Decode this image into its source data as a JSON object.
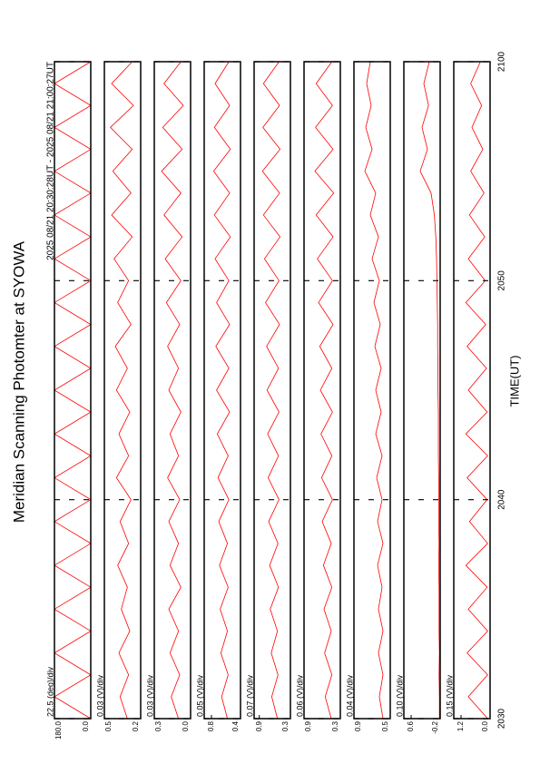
{
  "chart_data": {
    "type": "line",
    "title": "Meridian Scanning Photomter at SYOWA",
    "subtitle": "2025 08/21 20:30:28UT - 2025 08/21 21:00:27UT",
    "xlabel": "TIME(UT)",
    "xlim": [
      0,
      30
    ],
    "xticks": [
      {
        "value": 0,
        "label": "2030"
      },
      {
        "value": 10,
        "label": "2040"
      },
      {
        "value": 20,
        "label": "2050"
      },
      {
        "value": 30,
        "label": "2100"
      }
    ],
    "x": [
      0,
      1,
      2,
      3,
      4,
      5,
      6,
      7,
      8,
      9,
      10,
      11,
      12,
      13,
      14,
      15,
      16,
      17,
      18,
      19,
      20,
      21,
      22,
      23,
      24,
      25,
      26,
      27,
      28,
      29,
      30
    ],
    "panels": [
      {
        "scale_label": "22.5 (deg)/div",
        "color": "#ff0000",
        "ylim": [
          0,
          180
        ],
        "yticks": [
          {
            "value": 180,
            "label": "180.0"
          },
          {
            "value": 0,
            "label": "0.0"
          }
        ],
        "values": [
          0,
          180,
          0,
          180,
          0,
          180,
          0,
          180,
          0,
          180,
          0,
          180,
          0,
          180,
          0,
          180,
          0,
          180,
          0,
          180,
          0,
          180,
          0,
          180,
          0,
          180,
          0,
          180,
          0,
          180,
          0
        ]
      },
      {
        "scale_label": "0.03 (V)/div",
        "color": "#ff0000",
        "ylim": [
          0.2,
          0.5
        ],
        "yticks": [
          0.5,
          0.2
        ],
        "values": [
          0.31,
          0.37,
          0.3,
          0.38,
          0.29,
          0.36,
          0.31,
          0.39,
          0.3,
          0.37,
          0.28,
          0.4,
          0.3,
          0.38,
          0.29,
          0.4,
          0.31,
          0.41,
          0.28,
          0.39,
          0.3,
          0.42,
          0.27,
          0.44,
          0.28,
          0.43,
          0.27,
          0.45,
          0.26,
          0.44,
          0.27
        ]
      },
      {
        "scale_label": "0.03 (V)/div",
        "color": "#ff0000",
        "ylim": [
          0,
          0.3
        ],
        "yticks": [
          0.3,
          {
            "value": 0,
            "label": "0.0"
          }
        ],
        "values": [
          0.1,
          0.16,
          0.09,
          0.17,
          0.1,
          0.18,
          0.08,
          0.17,
          0.1,
          0.18,
          0.09,
          0.19,
          0.1,
          0.17,
          0.08,
          0.18,
          0.1,
          0.19,
          0.09,
          0.2,
          0.08,
          0.21,
          0.07,
          0.22,
          0.08,
          0.24,
          0.07,
          0.23,
          0.06,
          0.22,
          0.08
        ]
      },
      {
        "scale_label": "0.05 (V)/div",
        "color": "#ff0000",
        "ylim": [
          0.4,
          0.9
        ],
        "yticks": [
          0.8,
          0.4
        ],
        "values": [
          0.58,
          0.66,
          0.57,
          0.67,
          0.58,
          0.68,
          0.57,
          0.69,
          0.58,
          0.7,
          0.56,
          0.71,
          0.57,
          0.72,
          0.55,
          0.73,
          0.56,
          0.74,
          0.55,
          0.73,
          0.56,
          0.75,
          0.54,
          0.76,
          0.55,
          0.77,
          0.54,
          0.76,
          0.55,
          0.75,
          0.56
        ]
      },
      {
        "scale_label": "0.07 (V)/div",
        "color": "#ff0000",
        "ylim": [
          0.3,
          1.0
        ],
        "yticks": [
          0.9,
          0.3
        ],
        "values": [
          0.55,
          0.66,
          0.54,
          0.67,
          0.55,
          0.69,
          0.53,
          0.7,
          0.54,
          0.72,
          0.52,
          0.73,
          0.53,
          0.74,
          0.52,
          0.75,
          0.53,
          0.76,
          0.51,
          0.78,
          0.52,
          0.8,
          0.5,
          0.82,
          0.51,
          0.84,
          0.5,
          0.83,
          0.51,
          0.82,
          0.52
        ]
      },
      {
        "scale_label": "0.06 (V)/div",
        "color": "#ff0000",
        "ylim": [
          0.3,
          0.9
        ],
        "yticks": [
          0.9,
          0.3
        ],
        "values": [
          0.45,
          0.55,
          0.44,
          0.56,
          0.45,
          0.57,
          0.44,
          0.58,
          0.45,
          0.6,
          0.43,
          0.61,
          0.44,
          0.62,
          0.43,
          0.63,
          0.44,
          0.64,
          0.42,
          0.66,
          0.43,
          0.68,
          0.42,
          0.7,
          0.41,
          0.72,
          0.42,
          0.71,
          0.43,
          0.7,
          0.44
        ]
      },
      {
        "scale_label": "0.04 (V)/div",
        "color": "#ff0000",
        "ylim": [
          0.5,
          0.9
        ],
        "yticks": [
          0.9,
          0.5
        ],
        "values": [
          0.58,
          0.62,
          0.58,
          0.63,
          0.58,
          0.63,
          0.59,
          0.64,
          0.58,
          0.64,
          0.59,
          0.65,
          0.59,
          0.66,
          0.6,
          0.66,
          0.6,
          0.67,
          0.61,
          0.68,
          0.62,
          0.7,
          0.63,
          0.72,
          0.66,
          0.78,
          0.7,
          0.77,
          0.71,
          0.76,
          0.72
        ]
      },
      {
        "scale_label": "0.10 (V)/div",
        "color": "#ff0000",
        "ylim": [
          -0.2,
          0.8
        ],
        "yticks": [
          0.6,
          -0.2
        ],
        "values": [
          -0.18,
          -0.18,
          -0.17,
          -0.18,
          -0.17,
          -0.17,
          -0.17,
          -0.16,
          -0.17,
          -0.16,
          -0.16,
          -0.16,
          -0.15,
          -0.15,
          -0.15,
          -0.14,
          -0.14,
          -0.13,
          -0.13,
          -0.12,
          -0.11,
          -0.1,
          -0.08,
          -0.04,
          0.05,
          0.35,
          0.15,
          0.3,
          0.12,
          0.25,
          0.1
        ]
      },
      {
        "scale_label": "0.15 (V)/div",
        "color": "#ff0000",
        "ylim": [
          0,
          1.5
        ],
        "yticks": [
          1.2,
          {
            "value": 0,
            "label": "0.0"
          }
        ],
        "values": [
          0.1,
          0.9,
          0.1,
          0.95,
          0.1,
          0.9,
          0.12,
          1.0,
          0.1,
          0.85,
          0.12,
          0.95,
          0.1,
          1.0,
          0.12,
          0.9,
          0.15,
          0.95,
          0.18,
          1.0,
          0.2,
          0.9,
          0.22,
          0.85,
          0.25,
          0.8,
          0.3,
          0.75,
          0.35,
          0.8,
          0.4
        ]
      }
    ]
  }
}
